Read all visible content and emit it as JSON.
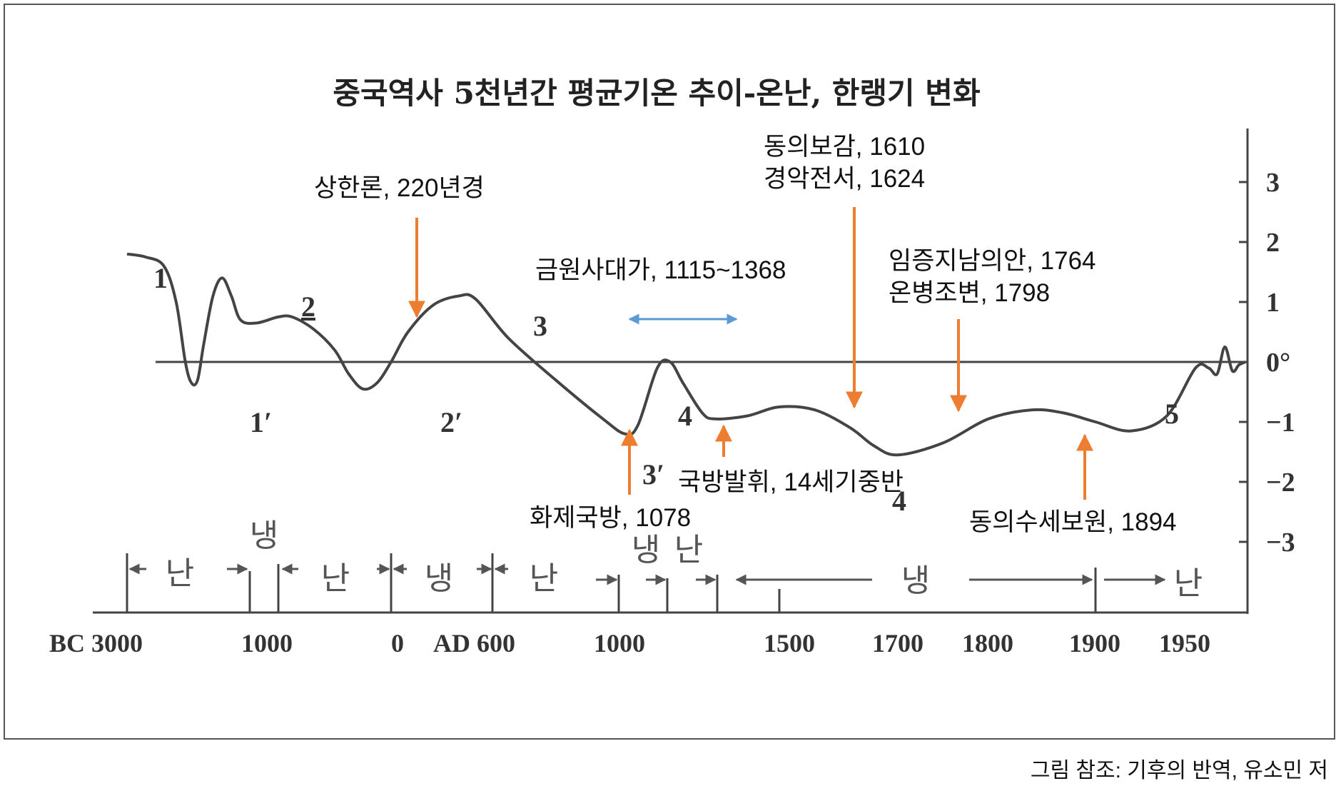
{
  "chart_data": {
    "type": "line",
    "title": "중국역사 5천년간 평균기온 추이-온난, 한랭기 변화",
    "ylim": [
      -3,
      3
    ],
    "y_ticks": [
      "3",
      "2",
      "1",
      "0°",
      "−1",
      "−2",
      "−3"
    ],
    "x_ticks": [
      "BC 3000",
      "1000",
      "0",
      "AD 600",
      "1000",
      "1500",
      "1700",
      "1800",
      "1900",
      "1950"
    ],
    "series": [
      {
        "values": [
          [
            -3000,
            1.8
          ],
          [
            -2700,
            1.75
          ],
          [
            -2400,
            1.6
          ],
          [
            -2200,
            1.0
          ],
          [
            -2050,
            0.0
          ],
          [
            -1950,
            -0.35
          ],
          [
            -1850,
            -0.3
          ],
          [
            -1750,
            0.3
          ],
          [
            -1600,
            1.1
          ],
          [
            -1450,
            1.4
          ],
          [
            -1300,
            1.1
          ],
          [
            -1150,
            0.7
          ],
          [
            -950,
            0.65
          ],
          [
            -800,
            0.75
          ],
          [
            -700,
            0.75
          ],
          [
            -550,
            0.55
          ],
          [
            -400,
            0.2
          ],
          [
            -300,
            -0.2
          ],
          [
            -200,
            -0.45
          ],
          [
            -100,
            -0.35
          ],
          [
            0,
            0.0
          ],
          [
            100,
            0.5
          ],
          [
            250,
            0.95
          ],
          [
            400,
            1.1
          ],
          [
            500,
            1.05
          ],
          [
            650,
            0.4
          ],
          [
            800,
            -0.3
          ],
          [
            950,
            -0.95
          ],
          [
            1020,
            -1.2
          ],
          [
            1060,
            -1.05
          ],
          [
            1120,
            -0.1
          ],
          [
            1160,
            0.0
          ],
          [
            1200,
            -0.35
          ],
          [
            1260,
            -0.85
          ],
          [
            1300,
            -0.95
          ],
          [
            1400,
            -0.9
          ],
          [
            1500,
            -0.75
          ],
          [
            1560,
            -0.8
          ],
          [
            1620,
            -1.1
          ],
          [
            1660,
            -1.4
          ],
          [
            1700,
            -1.55
          ],
          [
            1750,
            -1.35
          ],
          [
            1800,
            -0.95
          ],
          [
            1840,
            -0.8
          ],
          [
            1870,
            -0.85
          ],
          [
            1900,
            -1.0
          ],
          [
            1920,
            -1.15
          ],
          [
            1940,
            -0.9
          ],
          [
            1960,
            -0.1
          ],
          [
            1972,
            -0.1
          ],
          [
            1980,
            -0.2
          ],
          [
            1987,
            0.25
          ],
          [
            1994,
            -0.15
          ],
          [
            2000,
            -0.05
          ],
          [
            2006,
            0.0
          ]
        ]
      }
    ],
    "curve_labels": [
      "1",
      "2",
      "3",
      "4",
      "5",
      "1′",
      "2′",
      "3′",
      "4"
    ],
    "periods": [
      "난",
      "냉",
      "난",
      "냉",
      "난",
      "냉",
      "난",
      "냉",
      "난"
    ],
    "annotations": [
      {
        "text": "상한론, 220년경",
        "direction": "down"
      },
      {
        "text": "금원사대가, 1115~1368",
        "direction": "range"
      },
      {
        "lines": [
          "동의보감, 1610",
          "경악전서, 1624"
        ],
        "direction": "down"
      },
      {
        "lines": [
          "임증지남의안, 1764",
          "온병조변, 1798"
        ],
        "direction": "down"
      },
      {
        "text": "화제국방, 1078",
        "direction": "up"
      },
      {
        "text": "국방발휘, 14세기중반",
        "direction": "up"
      },
      {
        "text": "동의수세보원, 1894",
        "direction": "up"
      }
    ],
    "colors": {
      "annotation_arrow": "#ED7D31",
      "range_arrow": "#5B9BD5",
      "curve": "#444444"
    }
  },
  "caption": "그림 참조: 기후의 반역, 유소민 저"
}
